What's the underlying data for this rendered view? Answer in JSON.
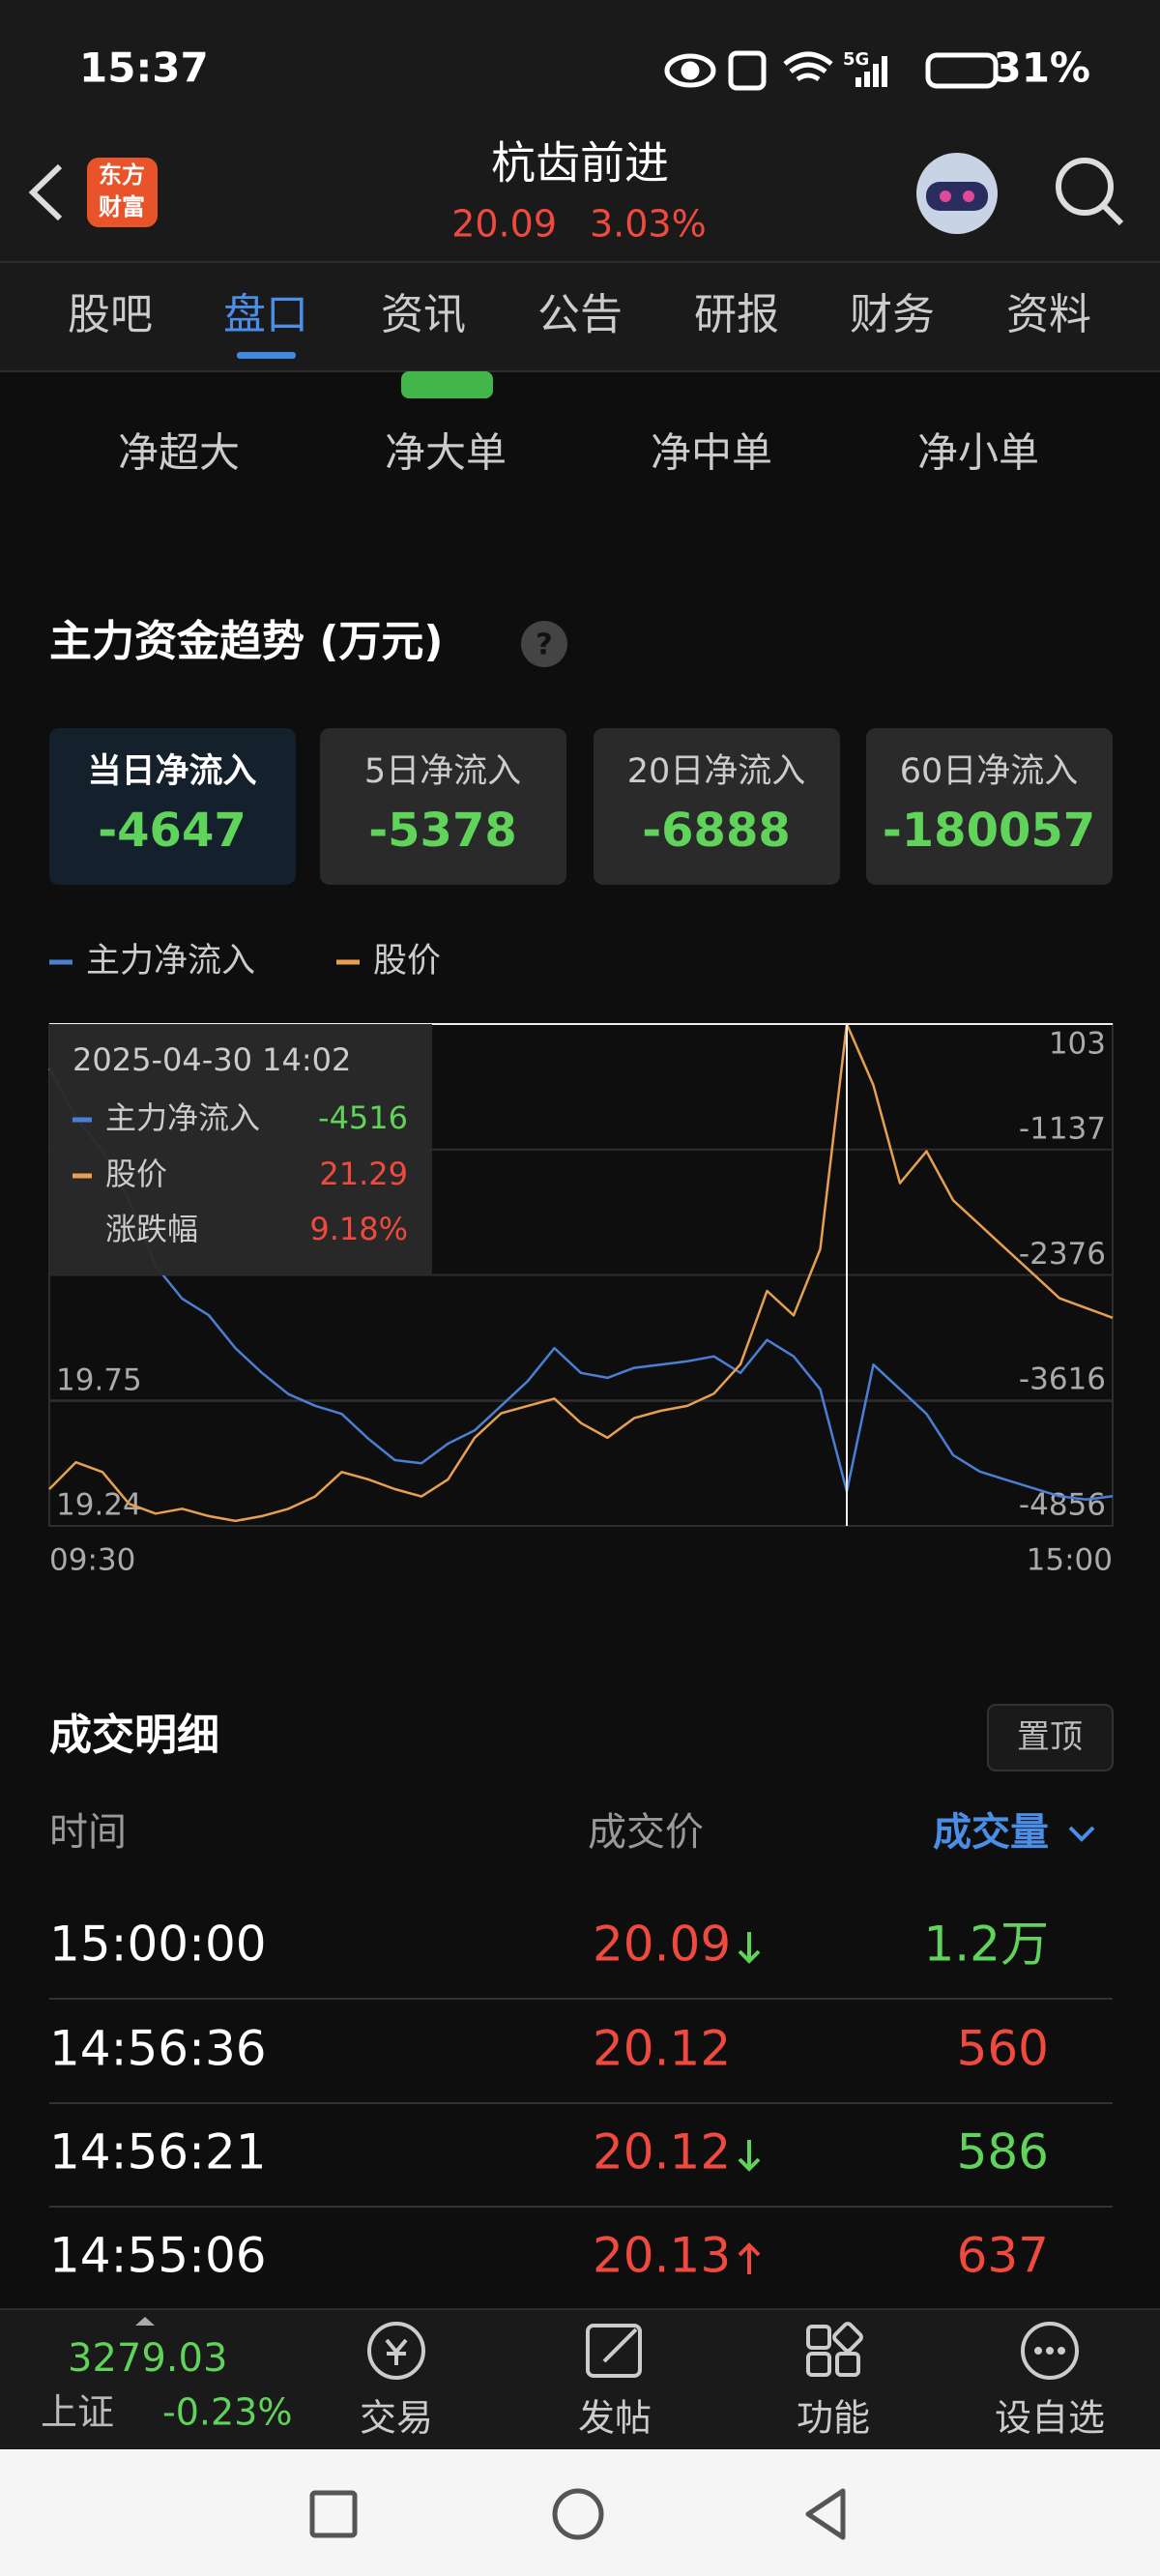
{
  "status_bar": {
    "time": "15:37",
    "network": "5G",
    "battery": "31%"
  },
  "header": {
    "logo": [
      "东方",
      "财富"
    ],
    "title": "杭齿前进",
    "price": "20.09",
    "change": "3.03%"
  },
  "tabs": {
    "items": [
      "股吧",
      "盘口",
      "资讯",
      "公告",
      "研报",
      "财务",
      "资料"
    ],
    "active": 1
  },
  "sub_tabs": {
    "items": [
      "净超大",
      "净大单",
      "净中单",
      "净小单"
    ],
    "active": 1
  },
  "fund_trend": {
    "title": "主力资金趋势 (万元)",
    "help": "?",
    "active": 0,
    "cards": [
      {
        "label": "当日净流入",
        "value": "-4647"
      },
      {
        "label": "5日净流入",
        "value": "-5378"
      },
      {
        "label": "20日净流入",
        "value": "-6888"
      },
      {
        "label": "60日净流入",
        "value": "-180057"
      }
    ]
  },
  "chart_data": {
    "type": "line",
    "categories": [
      "09:30",
      null,
      null,
      null,
      null,
      null,
      null,
      null,
      null,
      null,
      null,
      null,
      null,
      null,
      null,
      null,
      null,
      null,
      null,
      null,
      null,
      null,
      null,
      null,
      null,
      null,
      null,
      null,
      null,
      null,
      null,
      null,
      null,
      null,
      null,
      null,
      null,
      null,
      null,
      null,
      "15:00"
    ],
    "series": [
      {
        "name": "主力净流入",
        "color": "#4a7fd4",
        "axis": "y2",
        "values": [
          -336,
          -824,
          -1149,
          -1637,
          -2287,
          -2612,
          -2775,
          -3100,
          -3344,
          -3555,
          -3669,
          -3750,
          -3994,
          -4206,
          -4238,
          -4043,
          -3913,
          -3669,
          -3425,
          -3100,
          -3344,
          -3393,
          -3295,
          -3262,
          -3230,
          -3181,
          -3344,
          -3019,
          -3181,
          -3506,
          -4516,
          -3262,
          -3506,
          -3750,
          -4157,
          -4319,
          -4401,
          -4482,
          -4563,
          -4596,
          -4563
        ]
      },
      {
        "name": "股价",
        "color": "#e8a050",
        "values": [
          19.39,
          19.5,
          19.46,
          19.33,
          19.29,
          19.31,
          19.28,
          19.26,
          19.28,
          19.31,
          19.36,
          19.46,
          19.43,
          19.39,
          19.36,
          19.43,
          19.6,
          19.7,
          19.73,
          19.76,
          19.66,
          19.6,
          19.68,
          19.71,
          19.73,
          19.78,
          19.9,
          20.2,
          20.1,
          20.37,
          21.29,
          21.04,
          20.64,
          20.77,
          20.57,
          20.47,
          20.37,
          20.27,
          20.17,
          20.13,
          20.09
        ]
      }
    ],
    "ylim": [
      19.24,
      21.29
    ],
    "yticks": [
      19.24,
      19.75
    ],
    "y2lim": [
      -4856,
      103
    ],
    "y2ticks": [
      103,
      -1137,
      -2376,
      -3616,
      -4856
    ],
    "grid": true,
    "crosshair": {
      "index": 30,
      "time": "2025-04-30 14:02",
      "rows": [
        {
          "name": "主力净流入",
          "value": -4516,
          "color": "#5fd35a"
        },
        {
          "name": "股价",
          "value": 21.29,
          "color": "#f04a3e"
        },
        {
          "name": "涨跌幅",
          "value": "9.18%",
          "color": "#f04a3e"
        }
      ]
    }
  },
  "trades": {
    "title": "成交明细",
    "pin": "置顶",
    "columns": [
      "时间",
      "成交价",
      "成交量"
    ],
    "rows": [
      {
        "time": "15:00:00",
        "price": "20.09",
        "arrow": "down",
        "volume": "1.2万",
        "volume_color": "#5fd35a"
      },
      {
        "time": "14:56:36",
        "price": "20.12",
        "volume": "560",
        "volume_color": "#f04a3e"
      },
      {
        "time": "14:56:21",
        "price": "20.12",
        "arrow": "down",
        "volume": "586",
        "volume_color": "#5fd35a"
      },
      {
        "time": "14:55:06",
        "price": "20.13",
        "arrow": "up",
        "volume": "637",
        "volume_color": "#f04a3e"
      }
    ]
  },
  "bottom_bar": {
    "index": {
      "value": "3279.03",
      "name": "上证",
      "change": "-0.23%"
    },
    "items": [
      "交易",
      "发帖",
      "功能",
      "设自选"
    ]
  }
}
